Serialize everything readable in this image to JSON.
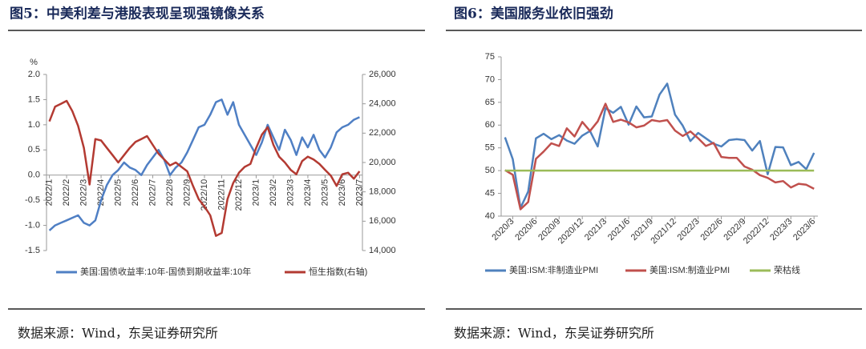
{
  "chart_data": [
    {
      "type": "line",
      "title": "图5：中美利差与港股表现呈现强镜像关系",
      "y_label": "%",
      "source": "数据来源：Wind，东吴证券研究所",
      "categories": [
        "2022/1",
        null,
        null,
        "2022/2",
        null,
        null,
        "2022/3",
        null,
        null,
        "2022/4",
        null,
        null,
        "2022/5",
        null,
        null,
        "2022/6",
        null,
        null,
        "2022/7",
        null,
        null,
        "2022/8",
        null,
        null,
        "2022/9",
        null,
        null,
        "2022/10",
        null,
        null,
        "2022/11",
        null,
        null,
        "2022/12",
        null,
        null,
        "2023/1",
        null,
        null,
        "2023/2",
        null,
        null,
        "2023/3",
        null,
        null,
        "2023/4",
        null,
        null,
        "2023/5",
        null,
        null,
        "2023/6",
        null,
        null,
        "2023/7"
      ],
      "ylim": [
        -1.5,
        2.0
      ],
      "yticks": [
        {
          "value": -1.5,
          "label": "-1.5"
        },
        {
          "value": -1,
          "label": "-1.0"
        },
        {
          "value": -0.5,
          "label": "-0.5"
        },
        {
          "value": 0,
          "label": "0.0"
        },
        {
          "value": 0.5,
          "label": "0.5"
        },
        {
          "value": 1,
          "label": "1.0"
        },
        {
          "value": 1.5,
          "label": "1.5"
        },
        {
          "value": 2,
          "label": "2.0"
        }
      ],
      "y2lim": [
        14000,
        26000
      ],
      "y2ticks": [
        {
          "value": 14000,
          "label": "14,000"
        },
        {
          "value": 16000,
          "label": "16,000"
        },
        {
          "value": 18000,
          "label": "18,000"
        },
        {
          "value": 20000,
          "label": "20,000"
        },
        {
          "value": 22000,
          "label": "22,000"
        },
        {
          "value": 24000,
          "label": "24,000"
        },
        {
          "value": 26000,
          "label": "26,000"
        }
      ],
      "series": [
        {
          "name": "美国:国债收益率:10年-国债到期收益率:10年",
          "color": "#4f7fc4",
          "values": [
            -1.1,
            -1.0,
            -0.95,
            -0.9,
            -0.85,
            -0.8,
            -0.95,
            -1.0,
            -0.9,
            -0.5,
            -0.2,
            0.0,
            0.1,
            0.25,
            0.15,
            0.1,
            0.0,
            0.2,
            0.35,
            0.5,
            0.3,
            0.0,
            0.15,
            0.25,
            0.45,
            0.7,
            0.95,
            1.0,
            1.2,
            1.45,
            1.5,
            1.2,
            1.45,
            1.0,
            0.8,
            0.6,
            0.4,
            0.65,
            1.0,
            0.75,
            0.5,
            0.9,
            0.7,
            0.4,
            0.75,
            0.55,
            0.8,
            0.5,
            0.35,
            0.55,
            0.85,
            0.95,
            1.0,
            1.1,
            1.15
          ]
        },
        {
          "name": "恒生指数(右轴)",
          "color": "#b33a32",
          "axis": "y2",
          "values": [
            22800,
            23800,
            24000,
            24200,
            23500,
            22500,
            21000,
            18500,
            21600,
            21500,
            21000,
            20500,
            20000,
            20500,
            21000,
            21400,
            21600,
            21800,
            21200,
            20600,
            20200,
            19800,
            20000,
            19700,
            19400,
            18400,
            17500,
            17000,
            16400,
            15000,
            15200,
            17500,
            18600,
            19300,
            19700,
            19900,
            21000,
            21900,
            22400,
            21200,
            20400,
            20000,
            19500,
            19200,
            20100,
            20400,
            20200,
            19900,
            19500,
            19100,
            18400,
            19200,
            19300,
            18900,
            19400
          ]
        }
      ]
    },
    {
      "type": "line",
      "title": "图6：美国服务业依旧强劲",
      "source": "数据来源：Wind，东吴证券研究所",
      "categories": [
        null,
        "2020/3",
        null,
        null,
        "2020/6",
        null,
        null,
        "2020/9",
        null,
        null,
        "2020/12",
        null,
        null,
        "2021/3",
        null,
        null,
        "2021/6",
        null,
        null,
        "2021/9",
        null,
        null,
        "2021/12",
        null,
        null,
        "2022/3",
        null,
        null,
        "2022/6",
        null,
        null,
        "2022/9",
        null,
        null,
        "2022/12",
        null,
        null,
        "2023/3",
        null,
        null,
        "2023/6"
      ],
      "ylim": [
        40,
        75
      ],
      "yticks": [
        40,
        45,
        50,
        55,
        60,
        65,
        70,
        75
      ],
      "series": [
        {
          "name": "美国:ISM:非制造业PMI",
          "color": "#4f81bd",
          "values": [
            57.3,
            52.5,
            41.8,
            45.4,
            57.1,
            58.1,
            56.9,
            57.8,
            56.6,
            55.9,
            57.7,
            58.7,
            55.3,
            63.7,
            62.7,
            64.0,
            60.1,
            64.1,
            61.7,
            61.9,
            66.7,
            69.1,
            62.3,
            59.9,
            56.5,
            58.3,
            57.1,
            55.9,
            55.3,
            56.7,
            56.9,
            56.7,
            54.4,
            56.5,
            49.2,
            55.2,
            55.1,
            51.2,
            51.9,
            50.3,
            53.9
          ]
        },
        {
          "name": "美国:ISM:制造业PMI",
          "color": "#c0504d",
          "values": [
            50.1,
            49.1,
            41.5,
            43.1,
            52.6,
            54.2,
            56.0,
            55.4,
            59.3,
            57.5,
            60.7,
            58.7,
            60.8,
            64.7,
            60.7,
            61.2,
            60.6,
            59.5,
            59.9,
            61.1,
            60.8,
            61.1,
            58.8,
            57.6,
            58.6,
            57.1,
            55.4,
            56.1,
            53.0,
            52.8,
            52.8,
            50.9,
            50.2,
            49.0,
            48.4,
            47.4,
            47.7,
            46.3,
            47.1,
            46.9,
            46.0
          ]
        },
        {
          "name": "荣枯线",
          "color": "#9bbb59",
          "values": [
            50,
            50,
            50,
            50,
            50,
            50,
            50,
            50,
            50,
            50,
            50,
            50,
            50,
            50,
            50,
            50,
            50,
            50,
            50,
            50,
            50,
            50,
            50,
            50,
            50,
            50,
            50,
            50,
            50,
            50,
            50,
            50,
            50,
            50,
            50,
            50,
            50,
            50,
            50,
            50,
            50
          ]
        }
      ]
    }
  ]
}
